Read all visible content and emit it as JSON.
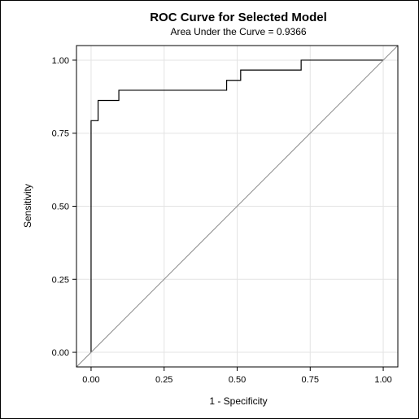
{
  "chart_data": {
    "type": "line",
    "title": "ROC Curve for Selected Model",
    "subtitle": "Area Under the Curve = 0.9366",
    "xlabel": "1 - Specificity",
    "ylabel": "Sensitivity",
    "xlim": [
      -0.05,
      1.05
    ],
    "ylim": [
      -0.05,
      1.05
    ],
    "xticks": [
      0.0,
      0.25,
      0.5,
      0.75,
      1.0
    ],
    "xtick_labels": [
      "0.00",
      "0.25",
      "0.50",
      "0.75",
      "1.00"
    ],
    "yticks": [
      0.0,
      0.25,
      0.5,
      0.75,
      1.0
    ],
    "ytick_labels": [
      "0.00",
      "0.25",
      "0.50",
      "0.75",
      "1.00"
    ],
    "grid": true,
    "series": [
      {
        "style": "step",
        "color": "#000000",
        "points": [
          [
            0.0,
            0.0
          ],
          [
            0.0,
            0.793
          ],
          [
            0.024,
            0.793
          ],
          [
            0.024,
            0.862
          ],
          [
            0.095,
            0.862
          ],
          [
            0.095,
            0.897
          ],
          [
            0.464,
            0.897
          ],
          [
            0.464,
            0.931
          ],
          [
            0.512,
            0.931
          ],
          [
            0.512,
            0.966
          ],
          [
            0.719,
            0.966
          ],
          [
            0.719,
            1.0
          ],
          [
            1.0,
            1.0
          ]
        ]
      },
      {
        "style": "reference",
        "color": "#8c8c8c",
        "points": [
          [
            -0.05,
            -0.05
          ],
          [
            1.05,
            1.05
          ]
        ]
      }
    ]
  }
}
